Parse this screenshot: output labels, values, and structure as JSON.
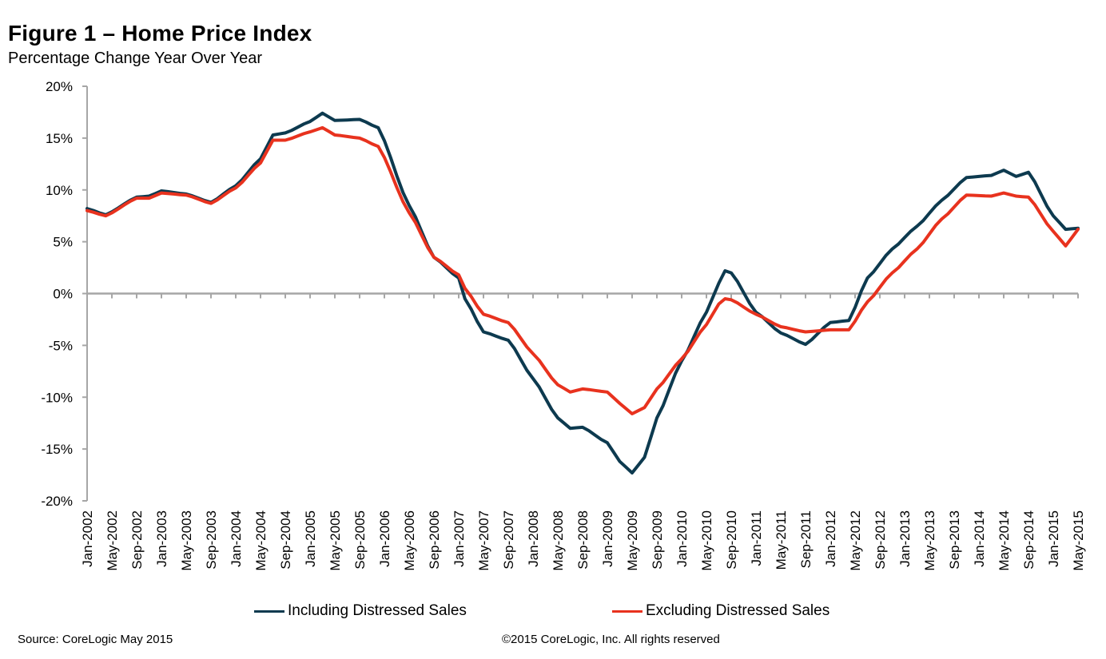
{
  "header": {
    "title": "Figure 1 – Home Price Index",
    "subtitle": "Percentage Change Year Over Year"
  },
  "footer": {
    "source": "Source: CoreLogic May 2015",
    "copyright": "©2015 CoreLogic, Inc. All rights reserved"
  },
  "chart_data": {
    "type": "line",
    "title": "Figure 1 – Home Price Index",
    "subtitle": "Percentage Change Year Over Year",
    "xlabel": "",
    "ylabel": "",
    "x_start": "Jan-2002",
    "x_end": "May-2015",
    "x_step": "monthly",
    "n_points": 161,
    "ylim": [
      -20,
      20
    ],
    "yticks": [
      20,
      15,
      10,
      5,
      0,
      -5,
      -10,
      -15,
      -20
    ],
    "ytick_labels": [
      "20%",
      "15%",
      "10%",
      "5%",
      "0%",
      "-5%",
      "-10%",
      "-15%",
      "-20%"
    ],
    "xtick_labels": [
      "Jan-2002",
      "May-2002",
      "Sep-2002",
      "Jan-2003",
      "May-2003",
      "Sep-2003",
      "Jan-2004",
      "May-2004",
      "Sep-2004",
      "Jan-2005",
      "May-2005",
      "Sep-2005",
      "Jan-2006",
      "May-2006",
      "Sep-2006",
      "Jan-2007",
      "May-2007",
      "Sep-2007",
      "Jan-2008",
      "May-2008",
      "Sep-2008",
      "Jan-2009",
      "May-2009",
      "Sep-2009",
      "Jan-2010",
      "May-2010",
      "Sep-2010",
      "Jan-2011",
      "May-2011",
      "Sep-2011",
      "Jan-2012",
      "May-2012",
      "Sep-2012",
      "Jan-2013",
      "May-2013",
      "Sep-2013",
      "Jan-2014",
      "May-2014",
      "Sep-2014",
      "Jan-2015",
      "May-2015"
    ],
    "grid": false,
    "legend_position": "bottom",
    "series": [
      {
        "name": "Including Distressed Sales",
        "color": "#0d3a4f",
        "keypoints": [
          [
            0,
            8.2
          ],
          [
            3,
            7.6
          ],
          [
            8,
            9.3
          ],
          [
            10,
            9.4
          ],
          [
            12,
            9.9
          ],
          [
            16,
            9.6
          ],
          [
            20,
            8.8
          ],
          [
            24,
            10.4
          ],
          [
            28,
            13.0
          ],
          [
            30,
            15.3
          ],
          [
            32,
            15.5
          ],
          [
            36,
            16.6
          ],
          [
            38,
            17.4
          ],
          [
            40,
            16.7
          ],
          [
            44,
            16.8
          ],
          [
            47,
            16.0
          ],
          [
            52,
            8.5
          ],
          [
            56,
            3.5
          ],
          [
            60,
            1.5
          ],
          [
            61,
            -0.5
          ],
          [
            64,
            -3.7
          ],
          [
            68,
            -4.5
          ],
          [
            72,
            -8.2
          ],
          [
            76,
            -12.0
          ],
          [
            78,
            -13.0
          ],
          [
            80,
            -12.9
          ],
          [
            84,
            -14.4
          ],
          [
            86,
            -16.2
          ],
          [
            88,
            -17.3
          ],
          [
            90,
            -15.8
          ],
          [
            92,
            -12.0
          ],
          [
            96,
            -6.5
          ],
          [
            100,
            -1.8
          ],
          [
            102,
            1.0
          ],
          [
            103,
            2.2
          ],
          [
            104,
            2.0
          ],
          [
            108,
            -1.8
          ],
          [
            112,
            -3.8
          ],
          [
            116,
            -4.9
          ],
          [
            120,
            -2.8
          ],
          [
            123,
            -2.6
          ],
          [
            126,
            1.5
          ],
          [
            130,
            4.3
          ],
          [
            134,
            6.5
          ],
          [
            138,
            9.0
          ],
          [
            142,
            11.2
          ],
          [
            146,
            11.4
          ],
          [
            148,
            11.9
          ],
          [
            150,
            11.3
          ],
          [
            152,
            11.7
          ],
          [
            156,
            7.5
          ],
          [
            158,
            6.2
          ],
          [
            160,
            6.3
          ]
        ]
      },
      {
        "name": "Excluding Distressed Sales",
        "color": "#e8321e",
        "keypoints": [
          [
            0,
            8.0
          ],
          [
            3,
            7.5
          ],
          [
            8,
            9.2
          ],
          [
            10,
            9.2
          ],
          [
            12,
            9.7
          ],
          [
            16,
            9.5
          ],
          [
            20,
            8.7
          ],
          [
            24,
            10.2
          ],
          [
            28,
            12.6
          ],
          [
            30,
            14.8
          ],
          [
            32,
            14.8
          ],
          [
            36,
            15.6
          ],
          [
            38,
            16.0
          ],
          [
            40,
            15.3
          ],
          [
            44,
            15.0
          ],
          [
            47,
            14.2
          ],
          [
            52,
            7.8
          ],
          [
            56,
            3.5
          ],
          [
            60,
            1.8
          ],
          [
            61,
            0.5
          ],
          [
            64,
            -2.0
          ],
          [
            68,
            -2.8
          ],
          [
            72,
            -5.8
          ],
          [
            76,
            -8.8
          ],
          [
            78,
            -9.5
          ],
          [
            80,
            -9.2
          ],
          [
            84,
            -9.5
          ],
          [
            86,
            -10.6
          ],
          [
            88,
            -11.6
          ],
          [
            90,
            -11.0
          ],
          [
            92,
            -9.2
          ],
          [
            96,
            -6.3
          ],
          [
            100,
            -3.0
          ],
          [
            102,
            -1.0
          ],
          [
            103,
            -0.5
          ],
          [
            104,
            -0.6
          ],
          [
            108,
            -2.0
          ],
          [
            112,
            -3.2
          ],
          [
            116,
            -3.7
          ],
          [
            120,
            -3.5
          ],
          [
            123,
            -3.5
          ],
          [
            126,
            -0.8
          ],
          [
            130,
            2.0
          ],
          [
            134,
            4.3
          ],
          [
            138,
            7.2
          ],
          [
            142,
            9.5
          ],
          [
            146,
            9.4
          ],
          [
            148,
            9.7
          ],
          [
            150,
            9.4
          ],
          [
            152,
            9.3
          ],
          [
            156,
            6.0
          ],
          [
            158,
            4.6
          ],
          [
            160,
            6.2
          ]
        ]
      }
    ]
  }
}
